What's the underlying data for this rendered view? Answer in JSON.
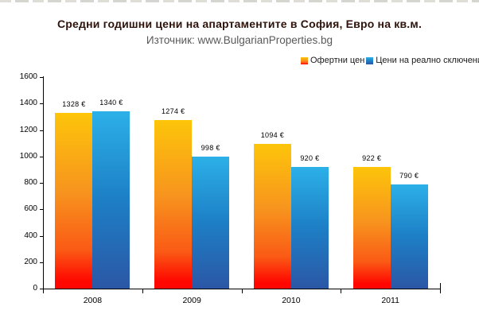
{
  "chart_data": {
    "type": "bar",
    "title": "Средни годишни цени на апартаментите в София, Евро на кв.м.",
    "subtitle": "Източник: www.BulgarianProperties.bg",
    "categories": [
      "2008",
      "2009",
      "2010",
      "2011"
    ],
    "series": [
      {
        "id": "offer",
        "name": "Офертни цен",
        "values": [
          1328,
          1274,
          1094,
          922
        ],
        "labels": [
          "1328 €",
          "1274 €",
          "1094 €",
          "922 €"
        ],
        "colors": [
          "#fdc50a",
          "#f7941e",
          "#fa5a15",
          "#ff0600"
        ],
        "stops": [
          0,
          45,
          78,
          96
        ]
      },
      {
        "id": "deal",
        "name": "Цени на реално сключени сде",
        "values": [
          1340,
          998,
          920,
          790
        ],
        "labels": [
          "1340 €",
          "998 €",
          "920 €",
          "790 €"
        ],
        "colors": [
          "#2cb0e8",
          "#1d7fc6",
          "#2b57a5"
        ],
        "stops": [
          0,
          50,
          100
        ]
      }
    ],
    "xlabel": "",
    "ylabel": "",
    "ylim": [
      0,
      1600
    ],
    "ytick_step": 200,
    "yticks": [
      0,
      200,
      400,
      600,
      800,
      1000,
      1200,
      1400,
      1600
    ],
    "grid": false,
    "legend_position": "top-right",
    "axis_color": "#000000",
    "background": "#ffffff"
  }
}
